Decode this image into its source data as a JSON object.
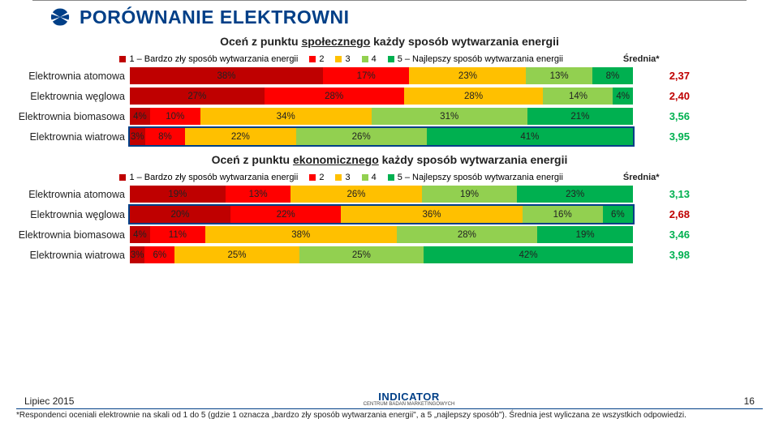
{
  "colors": {
    "c1": "#bf0000",
    "c2": "#ff0000",
    "c3": "#ffc000",
    "c4": "#92d050",
    "c5": "#00b050",
    "title": "#003f87",
    "avg_pos": "#00b050",
    "avg_neg": "#bf0000"
  },
  "title": "PORÓWNANIE ELEKTROWNI",
  "legend": {
    "l1": "1 – Bardzo zły sposób wytwarzania energii",
    "l2": "2",
    "l3": "3",
    "l4": "4",
    "l5": "5 – Najlepszy sposób wytwarzania energii",
    "avg": "Średnia*"
  },
  "chart1": {
    "subtitle_pre": "Oceń z punktu ",
    "subtitle_u": "społecznego",
    "subtitle_post": " każdy sposób wytwarzania energii",
    "rows": [
      {
        "label": "Elektrownia atomowa",
        "v": [
          38,
          17,
          23,
          13,
          8
        ],
        "avg": "2,37",
        "avg_color": "#bf0000",
        "frame": false
      },
      {
        "label": "Elektrownia węglowa",
        "v": [
          27,
          28,
          28,
          14,
          4
        ],
        "avg": "2,40",
        "avg_color": "#bf0000",
        "frame": false
      },
      {
        "label": "Elektrownia biomasowa",
        "v": [
          4,
          10,
          34,
          31,
          21
        ],
        "avg": "3,56",
        "avg_color": "#00b050",
        "frame": false
      },
      {
        "label": "Elektrownia wiatrowa",
        "v": [
          3,
          8,
          22,
          26,
          41
        ],
        "avg": "3,95",
        "avg_color": "#00b050",
        "frame": true
      }
    ]
  },
  "chart2": {
    "subtitle_pre": "Oceń z punktu ",
    "subtitle_u": "ekonomicznego",
    "subtitle_post": " każdy sposób wytwarzania energii",
    "rows": [
      {
        "label": "Elektrownia atomowa",
        "v": [
          19,
          13,
          26,
          19,
          23
        ],
        "avg": "3,13",
        "avg_color": "#00b050",
        "frame": false
      },
      {
        "label": "Elektrownia węglowa",
        "v": [
          20,
          22,
          36,
          16,
          6
        ],
        "avg": "2,68",
        "avg_color": "#bf0000",
        "frame": true
      },
      {
        "label": "Elektrownia biomasowa",
        "v": [
          4,
          11,
          38,
          28,
          19
        ],
        "avg": "3,46",
        "avg_color": "#00b050",
        "frame": false
      },
      {
        "label": "Elektrownia wiatrowa",
        "v": [
          3,
          6,
          25,
          25,
          42
        ],
        "avg": "3,98",
        "avg_color": "#00b050",
        "frame": false
      }
    ]
  },
  "footer": {
    "left": "Lipiec 2015",
    "page": "16",
    "logo_main": "INDICATOR",
    "logo_sub": "CENTRUM BADAŃ MARKETINGOWYCH",
    "note": "*Respondenci oceniali elektrownie na skali od 1 do 5 (gdzie 1 oznacza „bardzo zły sposób wytwarzania energii\", a 5 „najlepszy sposób\"). Średnia jest wyliczana ze wszystkich odpowiedzi."
  }
}
